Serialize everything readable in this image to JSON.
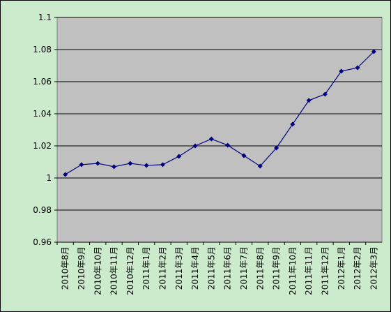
{
  "chart_data": {
    "type": "line",
    "categories": [
      "2010年8月",
      "2010年9月",
      "2010年10月",
      "2010年11月",
      "2010年12月",
      "2011年1月",
      "2011年2月",
      "2011年3月",
      "2011年4月",
      "2011年5月",
      "2011年6月",
      "2011年7月",
      "2011年8月",
      "2011年9月",
      "2011年10月",
      "2011年11月",
      "2011年12月",
      "2012年1月",
      "2012年2月",
      "2012年3月"
    ],
    "values": [
      1.0022,
      1.0083,
      1.0091,
      1.007,
      1.0091,
      1.0078,
      1.0083,
      1.0135,
      1.02,
      1.0243,
      1.0204,
      1.0139,
      1.0074,
      1.0187,
      1.0335,
      1.0483,
      1.0522,
      1.0665,
      1.0687,
      1.0787
    ],
    "color": "#000080",
    "ylim": [
      0.96,
      1.1
    ],
    "yticks": [
      0.96,
      0.98,
      1,
      1.02,
      1.04,
      1.06,
      1.08,
      1.1
    ],
    "grid": true
  }
}
